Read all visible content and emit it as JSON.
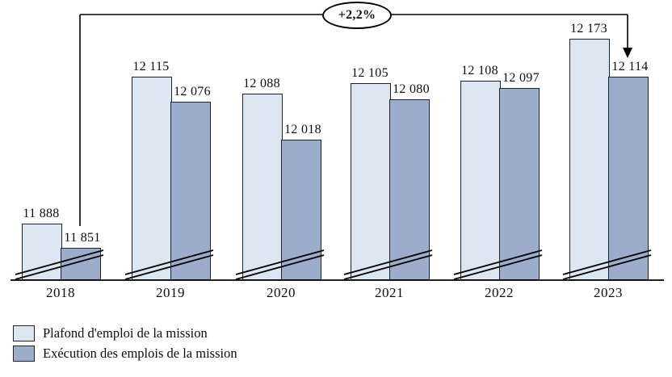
{
  "chart_data": {
    "type": "bar",
    "title": "",
    "categories": [
      "2018",
      "2019",
      "2020",
      "2021",
      "2022",
      "2023"
    ],
    "series": [
      {
        "name": "Plafond d'emploi de la mission",
        "key": "plafond",
        "color": "#dce6f1",
        "values": [
          11888,
          12115,
          12088,
          12105,
          12108,
          12173
        ],
        "labels": [
          "11 888",
          "12 115",
          "12 088",
          "12 105",
          "12 108",
          "12 173"
        ]
      },
      {
        "name": "Exécution des emplois de la mission",
        "key": "execution",
        "color": "#9cadcb",
        "values": [
          11851,
          12076,
          12018,
          12080,
          12097,
          12114
        ],
        "labels": [
          "11 851",
          "12 076",
          "12 018",
          "12 080",
          "12 097",
          "12 114"
        ]
      }
    ],
    "annotation": {
      "label": "+2,2%",
      "from_category": "2018",
      "to_category": "2023",
      "series": "Exécution des emplois de la mission"
    },
    "axis": {
      "ylim": [
        11801,
        12235
      ],
      "broken_axis": true,
      "grid": false,
      "tick_labels_visible": false
    },
    "legend_position": "bottom-left",
    "line_color": "#000000",
    "bar_border_color": "#1c2230"
  }
}
